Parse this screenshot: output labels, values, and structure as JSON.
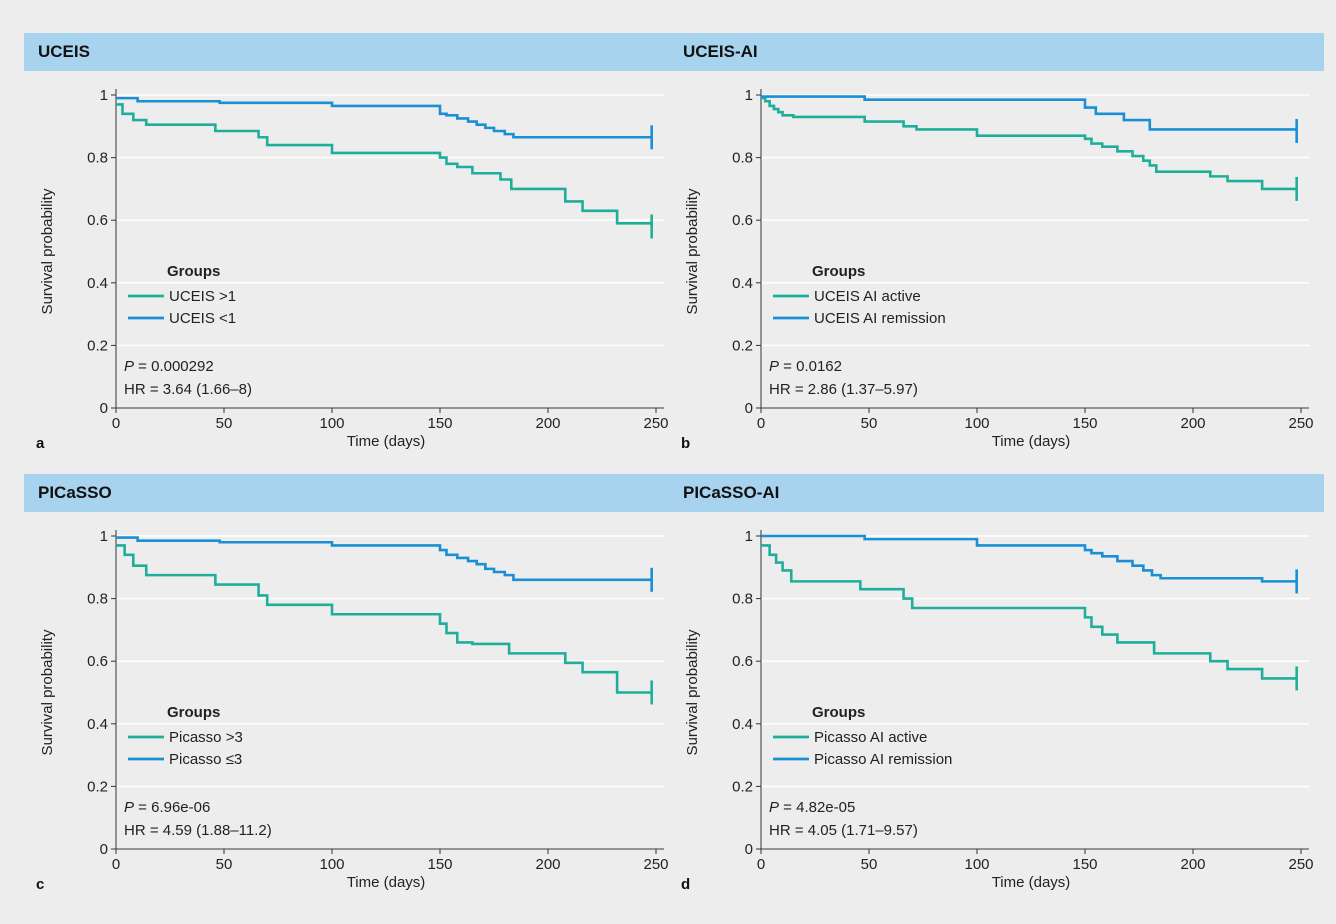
{
  "chart_data": [
    {
      "type": "line",
      "panel_letter": "a",
      "title": "UCEIS",
      "xlabel": "Time (days)",
      "ylabel": "Survival probability",
      "xlim": [
        0,
        250
      ],
      "ylim": [
        0,
        1
      ],
      "xticks": [
        "0",
        "50",
        "100",
        "150",
        "200",
        "250"
      ],
      "yticks": [
        "0",
        "0.2",
        "0.4",
        "0.6",
        "0.8",
        "1"
      ],
      "grid": true,
      "legend_title": "Groups",
      "legend_position": "middle-left",
      "p_label": "P",
      "p_value": "0.000292",
      "hr_text": "HR = 3.64 (1.66–8)",
      "series": [
        {
          "name": "UCEIS >1",
          "color": "#1fae9a",
          "x": [
            0,
            3,
            8,
            14,
            46,
            66,
            70,
            100,
            150,
            153,
            158,
            165,
            178,
            183,
            208,
            216,
            232,
            248
          ],
          "y": [
            0.97,
            0.94,
            0.92,
            0.905,
            0.885,
            0.865,
            0.84,
            0.815,
            0.8,
            0.78,
            0.77,
            0.75,
            0.73,
            0.7,
            0.66,
            0.63,
            0.59,
            0.58
          ]
        },
        {
          "name": "UCEIS <1",
          "color": "#1a8fd6",
          "x": [
            0,
            10,
            48,
            100,
            150,
            153,
            158,
            163,
            167,
            171,
            175,
            180,
            184,
            248
          ],
          "y": [
            0.99,
            0.98,
            0.975,
            0.965,
            0.94,
            0.935,
            0.925,
            0.915,
            0.905,
            0.895,
            0.885,
            0.875,
            0.865,
            0.865
          ]
        }
      ]
    },
    {
      "type": "line",
      "panel_letter": "b",
      "title": "UCEIS-AI",
      "xlabel": "Time (days)",
      "ylabel": "Survival probability",
      "xlim": [
        0,
        250
      ],
      "ylim": [
        0,
        1
      ],
      "xticks": [
        "0",
        "50",
        "100",
        "150",
        "200",
        "250"
      ],
      "yticks": [
        "0",
        "0.2",
        "0.4",
        "0.6",
        "0.8",
        "1"
      ],
      "grid": true,
      "legend_title": "Groups",
      "legend_position": "middle-left",
      "p_label": "P",
      "p_value": "0.0162",
      "hr_text": "HR = 2.86 (1.37–5.97)",
      "series": [
        {
          "name": "UCEIS AI active",
          "color": "#1fae9a",
          "x": [
            0,
            2,
            4,
            6,
            8,
            10,
            15,
            48,
            66,
            72,
            100,
            150,
            153,
            158,
            165,
            172,
            177,
            180,
            183,
            208,
            216,
            232,
            248
          ],
          "y": [
            0.99,
            0.98,
            0.965,
            0.955,
            0.945,
            0.935,
            0.93,
            0.915,
            0.9,
            0.89,
            0.87,
            0.86,
            0.845,
            0.835,
            0.82,
            0.805,
            0.79,
            0.775,
            0.755,
            0.74,
            0.725,
            0.7,
            0.7
          ]
        },
        {
          "name": "UCEIS AI remission",
          "color": "#1a8fd6",
          "x": [
            0,
            48,
            150,
            155,
            168,
            180,
            248
          ],
          "y": [
            0.995,
            0.985,
            0.96,
            0.94,
            0.92,
            0.89,
            0.885
          ]
        }
      ]
    },
    {
      "type": "line",
      "panel_letter": "c",
      "title": "PICaSSO",
      "xlabel": "Time (days)",
      "ylabel": "Survival probability",
      "xlim": [
        0,
        250
      ],
      "ylim": [
        0,
        1
      ],
      "xticks": [
        "0",
        "50",
        "100",
        "150",
        "200",
        "250"
      ],
      "yticks": [
        "0",
        "0.2",
        "0.4",
        "0.6",
        "0.8",
        "1"
      ],
      "grid": true,
      "legend_title": "Groups",
      "legend_position": "middle-left",
      "p_label": "P",
      "p_value": "6.96e-06",
      "hr_text": "HR = 4.59 (1.88–11.2)",
      "series": [
        {
          "name": "Picasso >3",
          "color": "#1fae9a",
          "x": [
            0,
            4,
            8,
            14,
            46,
            66,
            70,
            100,
            150,
            153,
            158,
            165,
            182,
            208,
            216,
            232,
            248
          ],
          "y": [
            0.97,
            0.94,
            0.905,
            0.875,
            0.845,
            0.81,
            0.78,
            0.75,
            0.72,
            0.69,
            0.66,
            0.655,
            0.625,
            0.595,
            0.565,
            0.5,
            0.5
          ]
        },
        {
          "name": "Picasso ≤3",
          "color": "#1a8fd6",
          "x": [
            0,
            10,
            48,
            100,
            150,
            153,
            158,
            163,
            167,
            171,
            175,
            180,
            184,
            248
          ],
          "y": [
            0.995,
            0.985,
            0.98,
            0.97,
            0.955,
            0.94,
            0.93,
            0.92,
            0.91,
            0.895,
            0.885,
            0.875,
            0.86,
            0.86
          ]
        }
      ]
    },
    {
      "type": "line",
      "panel_letter": "d",
      "title": "PICaSSO-AI",
      "xlabel": "Time (days)",
      "ylabel": "Survival probability",
      "xlim": [
        0,
        250
      ],
      "ylim": [
        0,
        1
      ],
      "xticks": [
        "0",
        "50",
        "100",
        "150",
        "200",
        "250"
      ],
      "yticks": [
        "0",
        "0.2",
        "0.4",
        "0.6",
        "0.8",
        "1"
      ],
      "grid": true,
      "legend_title": "Groups",
      "legend_position": "middle-left",
      "p_label": "P",
      "p_value": "4.82e-05",
      "hr_text": "HR = 4.05 (1.71–9.57)",
      "series": [
        {
          "name": "Picasso AI active",
          "color": "#1fae9a",
          "x": [
            0,
            4,
            7,
            10,
            14,
            46,
            66,
            70,
            100,
            150,
            153,
            158,
            165,
            182,
            208,
            216,
            232,
            248
          ],
          "y": [
            0.97,
            0.94,
            0.915,
            0.89,
            0.855,
            0.83,
            0.8,
            0.77,
            0.77,
            0.74,
            0.71,
            0.685,
            0.66,
            0.625,
            0.6,
            0.575,
            0.545,
            0.545
          ]
        },
        {
          "name": "Picasso AI remission",
          "color": "#1a8fd6",
          "x": [
            0,
            48,
            100,
            150,
            153,
            158,
            165,
            172,
            177,
            181,
            185,
            232,
            248
          ],
          "y": [
            1.0,
            0.99,
            0.97,
            0.955,
            0.945,
            0.935,
            0.92,
            0.905,
            0.89,
            0.875,
            0.865,
            0.855,
            0.855
          ]
        }
      ]
    }
  ]
}
